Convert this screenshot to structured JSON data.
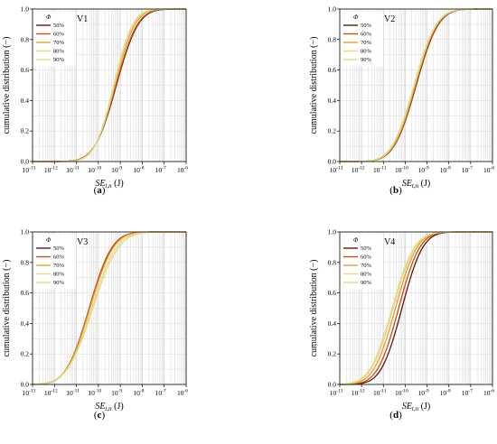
{
  "palette": {
    "50%": "#5a1a0c",
    "60%": "#c0530f",
    "70%": "#eb9b33",
    "80%": "#f6d37c",
    "90%": "#d4e08a"
  },
  "chart_data": [
    {
      "type": "line",
      "panel": "V1",
      "caption_letter": "a",
      "legend_title": "Φ",
      "legend_placement": "top-left",
      "xscale": "log",
      "xlim": [
        1e-13,
        1e-06
      ],
      "ylim": [
        0,
        1
      ],
      "xlabel_main": "SE",
      "xlabel_sub": "t,n",
      "xlabel_unit": " (J)",
      "ylabel": "cumulative distribution (−)",
      "x_ticks": [
        "10",
        "10",
        "10",
        "10",
        "10",
        "10",
        "10",
        "10"
      ],
      "x_tick_exps": [
        "-13",
        "-12",
        "-11",
        "-10",
        "-9",
        "-8",
        "-7",
        "-6"
      ],
      "y_ticks": [
        "0.0",
        "0.2",
        "0.4",
        "0.6",
        "0.8",
        "1.0"
      ],
      "series": [
        {
          "name": "50%",
          "mu": -9.18,
          "sigma": 0.78
        },
        {
          "name": "60%",
          "mu": -9.2,
          "sigma": 0.77
        },
        {
          "name": "70%",
          "mu": -9.25,
          "sigma": 0.72
        },
        {
          "name": "80%",
          "mu": -9.28,
          "sigma": 0.7
        },
        {
          "name": "90%",
          "mu": -9.3,
          "sigma": 0.68
        }
      ]
    },
    {
      "type": "line",
      "panel": "V2",
      "caption_letter": "b",
      "legend_title": "Φ",
      "legend_placement": "top-left",
      "xscale": "log",
      "xlim": [
        1e-13,
        1e-06
      ],
      "ylim": [
        0,
        1
      ],
      "xlabel_main": "SE",
      "xlabel_sub": "t,n",
      "xlabel_unit": " (J)",
      "ylabel": "cumulative distribution (−)",
      "x_ticks": [
        "10",
        "10",
        "10",
        "10",
        "10",
        "10",
        "10",
        "10"
      ],
      "x_tick_exps": [
        "-13",
        "-12",
        "-11",
        "-10",
        "-9",
        "-8",
        "-7",
        "-6"
      ],
      "y_ticks": [
        "0.0",
        "0.2",
        "0.4",
        "0.6",
        "0.8",
        "1.0"
      ],
      "series": [
        {
          "name": "50%",
          "mu": -9.5,
          "sigma": 0.8
        },
        {
          "name": "60%",
          "mu": -9.52,
          "sigma": 0.8
        },
        {
          "name": "70%",
          "mu": -9.55,
          "sigma": 0.79
        },
        {
          "name": "80%",
          "mu": -9.58,
          "sigma": 0.8
        },
        {
          "name": "90%",
          "mu": -9.6,
          "sigma": 0.8
        }
      ]
    },
    {
      "type": "line",
      "panel": "V3",
      "caption_letter": "c",
      "legend_title": "Φ",
      "legend_placement": "top-left",
      "xscale": "log",
      "xlim": [
        1e-13,
        1e-06
      ],
      "ylim": [
        0,
        1
      ],
      "xlabel_main": "SE",
      "xlabel_sub": "t,n",
      "xlabel_unit": " (J)",
      "ylabel": "cumulative distribution (−)",
      "x_ticks": [
        "10",
        "10",
        "10",
        "10",
        "10",
        "10",
        "10",
        "10"
      ],
      "x_tick_exps": [
        "-13",
        "-12",
        "-11",
        "-10",
        "-9",
        "-8",
        "-7",
        "-6"
      ],
      "y_ticks": [
        "0.0",
        "0.2",
        "0.4",
        "0.6",
        "0.8",
        "1.0"
      ],
      "series": [
        {
          "name": "50%",
          "mu": -10.4,
          "sigma": 0.82
        },
        {
          "name": "60%",
          "mu": -10.42,
          "sigma": 0.82
        },
        {
          "name": "70%",
          "mu": -10.38,
          "sigma": 0.84
        },
        {
          "name": "80%",
          "mu": -10.3,
          "sigma": 0.88
        },
        {
          "name": "90%",
          "mu": -10.25,
          "sigma": 0.92
        }
      ]
    },
    {
      "type": "line",
      "panel": "V4",
      "caption_letter": "d",
      "legend_title": "Φ",
      "legend_placement": "top-left",
      "xscale": "log",
      "xlim": [
        1e-13,
        1e-06
      ],
      "ylim": [
        0,
        1
      ],
      "xlabel_main": "SE",
      "xlabel_sub": "t,n",
      "xlabel_unit": " (J)",
      "ylabel": "cumulative distribution (−)",
      "x_ticks": [
        "10",
        "10",
        "10",
        "10",
        "10",
        "10",
        "10",
        "10"
      ],
      "x_tick_exps": [
        "-13",
        "-12",
        "-11",
        "-10",
        "-9",
        "-8",
        "-7",
        "-6"
      ],
      "y_ticks": [
        "0.0",
        "0.2",
        "0.4",
        "0.6",
        "0.8",
        "1.0"
      ],
      "series": [
        {
          "name": "50%",
          "mu": -10.15,
          "sigma": 0.75
        },
        {
          "name": "60%",
          "mu": -10.3,
          "sigma": 0.76
        },
        {
          "name": "70%",
          "mu": -10.45,
          "sigma": 0.78
        },
        {
          "name": "80%",
          "mu": -10.55,
          "sigma": 0.8
        },
        {
          "name": "90%",
          "mu": -10.6,
          "sigma": 0.8
        }
      ]
    }
  ]
}
